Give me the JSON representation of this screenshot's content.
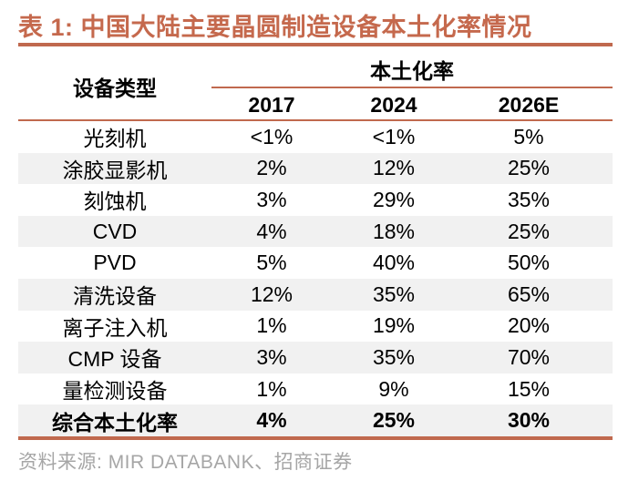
{
  "title": "表 1: 中国大陆主要晶圆制造设备本土化率情况",
  "table": {
    "col1_header": "设备类型",
    "group_header": "本土化率",
    "year_headers": [
      "2017",
      "2024",
      "2026E"
    ],
    "rows": [
      {
        "label": "光刻机",
        "values": [
          "<1%",
          "<1%",
          "5%"
        ],
        "bold": false
      },
      {
        "label": "涂胶显影机",
        "values": [
          "2%",
          "12%",
          "25%"
        ],
        "bold": false
      },
      {
        "label": "刻蚀机",
        "values": [
          "3%",
          "29%",
          "35%"
        ],
        "bold": false
      },
      {
        "label": "CVD",
        "values": [
          "4%",
          "18%",
          "25%"
        ],
        "bold": false
      },
      {
        "label": "PVD",
        "values": [
          "5%",
          "40%",
          "50%"
        ],
        "bold": false
      },
      {
        "label": "清洗设备",
        "values": [
          "12%",
          "35%",
          "65%"
        ],
        "bold": false
      },
      {
        "label": "离子注入机",
        "values": [
          "1%",
          "19%",
          "20%"
        ],
        "bold": false
      },
      {
        "label": "CMP 设备",
        "values": [
          "3%",
          "35%",
          "70%"
        ],
        "bold": false
      },
      {
        "label": "量检测设备",
        "values": [
          "1%",
          "9%",
          "15%"
        ],
        "bold": false
      },
      {
        "label": "综合本土化率",
        "values": [
          "4%",
          "25%",
          "30%"
        ],
        "bold": true
      }
    ]
  },
  "footer": {
    "source_label": "资料来源:",
    "source_text": "MIR DATABANK、招商证券"
  },
  "chart_data": {
    "type": "table",
    "title": "表 1: 中国大陆主要晶圆制造设备本土化率情况",
    "columns": [
      "设备类型",
      "2017",
      "2024",
      "2026E"
    ],
    "group_header": "本土化率",
    "rows": [
      [
        "光刻机",
        "<1%",
        "<1%",
        "5%"
      ],
      [
        "涂胶显影机",
        "2%",
        "12%",
        "25%"
      ],
      [
        "刻蚀机",
        "3%",
        "29%",
        "35%"
      ],
      [
        "CVD",
        "4%",
        "18%",
        "25%"
      ],
      [
        "PVD",
        "5%",
        "40%",
        "50%"
      ],
      [
        "清洗设备",
        "12%",
        "35%",
        "65%"
      ],
      [
        "离子注入机",
        "1%",
        "19%",
        "20%"
      ],
      [
        "CMP 设备",
        "3%",
        "35%",
        "70%"
      ],
      [
        "量检测设备",
        "1%",
        "9%",
        "15%"
      ],
      [
        "综合本土化率",
        "4%",
        "25%",
        "30%"
      ]
    ]
  },
  "colors": {
    "accent": "#c0694e",
    "title_text": "#c5694d",
    "row_alt": "#f1f1f1",
    "footer_text": "#a6a6a6"
  }
}
